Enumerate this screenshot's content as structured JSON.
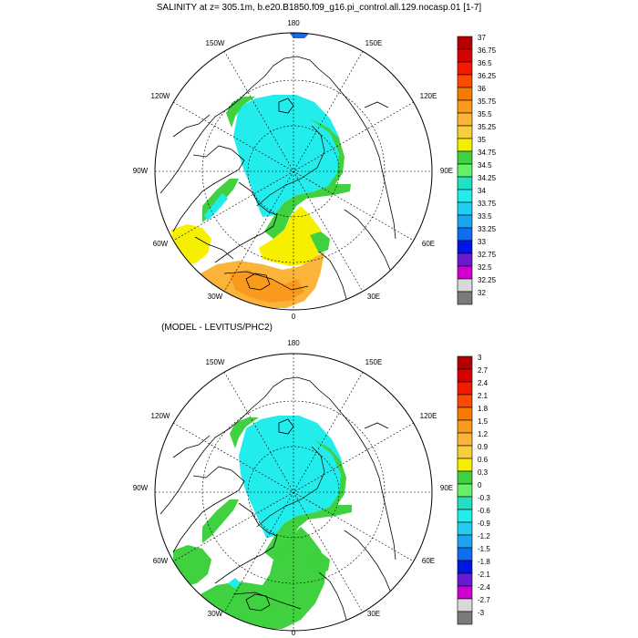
{
  "panels": [
    {
      "title": "SALINITY at z= 305.1m, b.e20.B1850.f09_g16.pi_control.all.129.nocasp.01 [1-7]",
      "lon_labels": {
        "top": "180",
        "ul": "150W",
        "ur": "150E",
        "l1": "120W",
        "r1": "120E",
        "l2": "90W",
        "r2": "90E",
        "l3": "60W",
        "r3": "60E",
        "l4": "30W",
        "r4": "30E",
        "bottom": "0"
      },
      "colorbar": {
        "labels": [
          "37",
          "36.75",
          "36.5",
          "36.25",
          "36",
          "35.75",
          "35.5",
          "35.25",
          "35",
          "34.75",
          "34.5",
          "34.25",
          "34",
          "33.75",
          "33.5",
          "33.25",
          "33",
          "32.75",
          "32.5",
          "32.25",
          "32"
        ],
        "colors": [
          "#b40000",
          "#d80000",
          "#f21b00",
          "#fb4b00",
          "#f57a00",
          "#f99a1c",
          "#fbb33a",
          "#f8cf3a",
          "#f6f000",
          "#3fd13f",
          "#66f066",
          "#22e0c2",
          "#22ecec",
          "#22cdf2",
          "#1aa5f2",
          "#0f6df2",
          "#0014e6",
          "#6a18d4",
          "#d000d2",
          "#d8d8d8",
          "#7a7a7a"
        ]
      }
    },
    {
      "title": "(MODEL - LEVITUS/PHC2)",
      "lon_labels": {
        "top": "180",
        "ul": "150W",
        "ur": "150E",
        "l1": "120W",
        "r1": "120E",
        "l2": "90W",
        "r2": "90E",
        "l3": "60W",
        "r3": "60E",
        "l4": "30W",
        "r4": "30E",
        "bottom": "0"
      },
      "colorbar": {
        "labels": [
          "3",
          "2.7",
          "2.4",
          "2.1",
          "1.8",
          "1.5",
          "1.2",
          "0.9",
          "0.6",
          "0.3",
          "0",
          "-0.3",
          "-0.6",
          "-0.9",
          "-1.2",
          "-1.5",
          "-1.8",
          "-2.1",
          "-2.4",
          "-2.7",
          "-3"
        ],
        "colors": [
          "#b40000",
          "#d80000",
          "#f21b00",
          "#fb4b00",
          "#f57a00",
          "#f99a1c",
          "#fbb33a",
          "#f8cf3a",
          "#f6f000",
          "#3fd13f",
          "#66f066",
          "#22e0c2",
          "#22ecec",
          "#22cdf2",
          "#1aa5f2",
          "#0f6df2",
          "#0014e6",
          "#6a18d4",
          "#d000d2",
          "#d8d8d8",
          "#7a7a7a"
        ]
      }
    }
  ]
}
